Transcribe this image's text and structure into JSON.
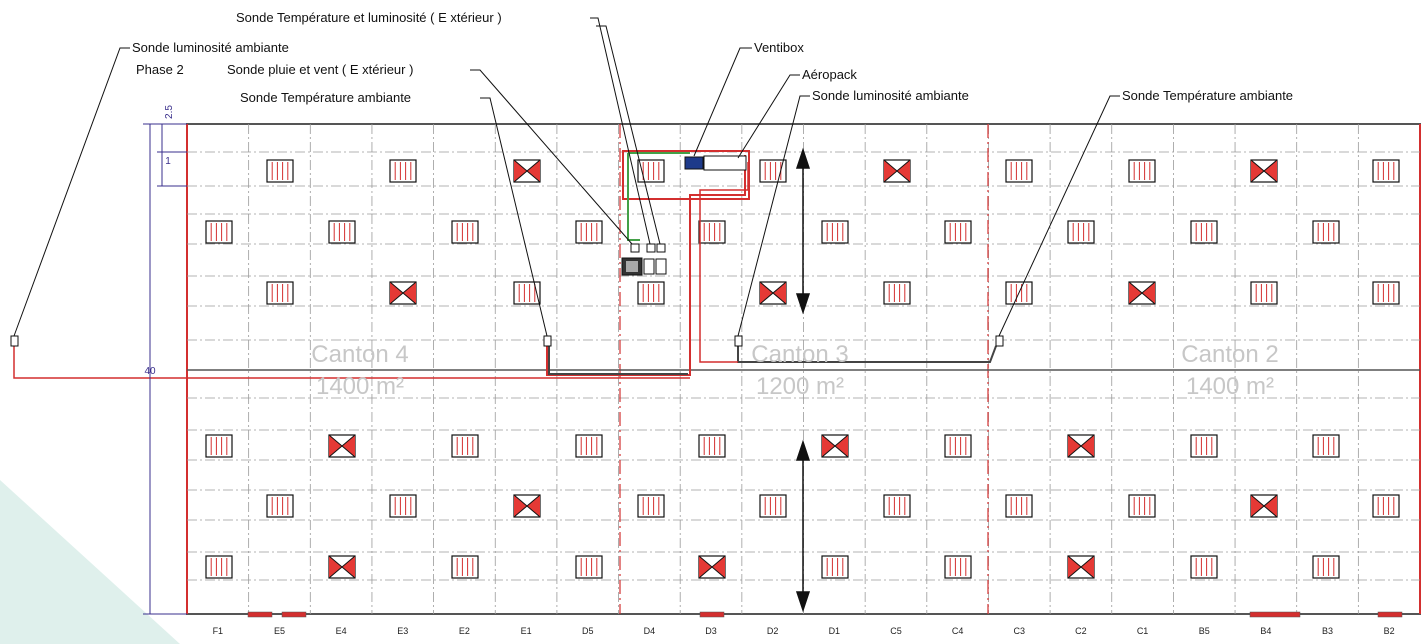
{
  "labels": {
    "temp_lum_ext": "Sonde Température et luminosité ( E xtérieur )",
    "lum_ambiante_left": "Sonde luminosité ambiante",
    "phase": "Phase 2",
    "pluie_vent": "Sonde pluie et vent ( E xtérieur )",
    "temp_ambiante_left": "Sonde Température ambiante",
    "ventibox": "Ventibox",
    "aeropack": "Aéropack",
    "lum_ambiante_mid": "Sonde luminosité ambiante",
    "temp_ambiante_right": "Sonde Température ambiante"
  },
  "cantons": [
    {
      "name": "Canton 4",
      "area": "1400 m²"
    },
    {
      "name": "Canton 3",
      "area": "1200 m²"
    },
    {
      "name": "Canton 2",
      "area": "1400 m²"
    }
  ],
  "columns": [
    "F1",
    "E5",
    "E4",
    "E3",
    "E2",
    "E1",
    "D5",
    "D4",
    "D3",
    "D2",
    "D1",
    "C5",
    "C4",
    "C3",
    "C2",
    "C1",
    "B5",
    "B4",
    "B3",
    "B2"
  ],
  "dimensions": {
    "top": "2.5",
    "module": "1",
    "height": "40"
  },
  "colors": {
    "wall": "#d32f2f",
    "cable": "#444444",
    "dim": "#3a2f8c",
    "vent_fill": "#e53935",
    "green": "#43a047",
    "blue": "#1e3a8a"
  }
}
